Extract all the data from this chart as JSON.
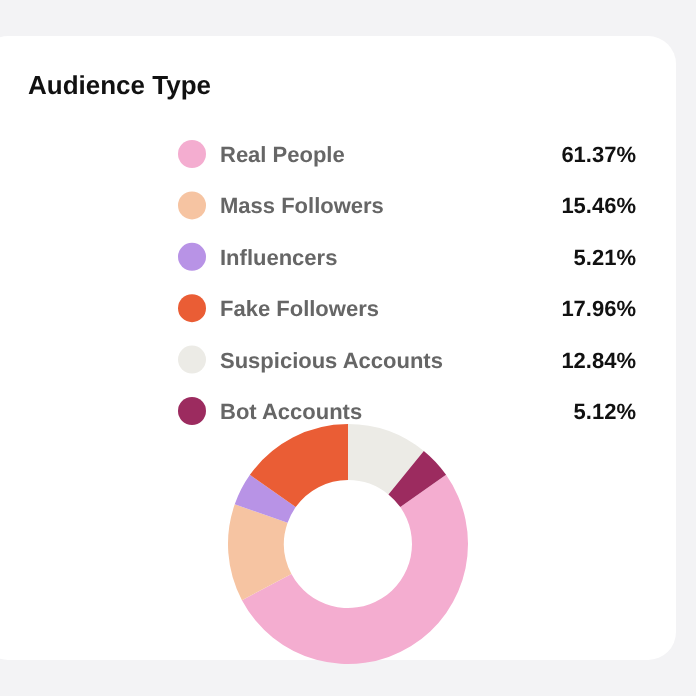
{
  "chart_data": {
    "type": "donut",
    "title": "Audience Type",
    "categories": [
      "Real People",
      "Mass Followers",
      "Influencers",
      "Fake Followers",
      "Suspicious Accounts",
      "Bot Accounts"
    ],
    "values": [
      61.37,
      15.46,
      5.21,
      17.96,
      12.84,
      5.12
    ],
    "value_labels": [
      "61.37%",
      "15.46%",
      "5.21%",
      "17.96%",
      "12.84%",
      "5.12%"
    ],
    "colors": [
      "#f4add0",
      "#f6c4a2",
      "#b893e6",
      "#ea5d35",
      "#ecebe6",
      "#9c2b5f"
    ],
    "legend": "top"
  }
}
